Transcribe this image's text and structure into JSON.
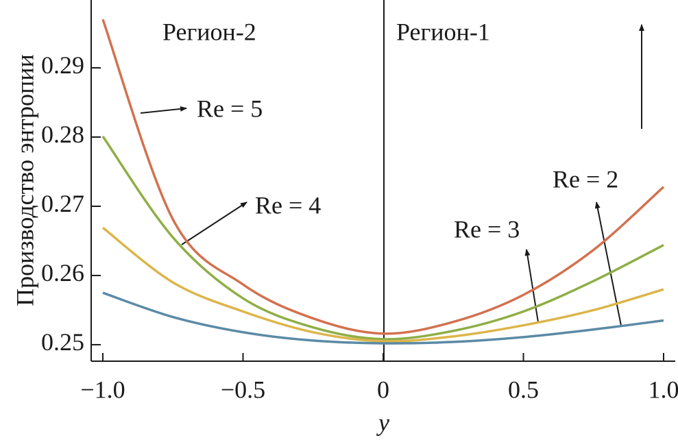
{
  "chart_data": {
    "type": "line",
    "x_label": "y",
    "y_label": "Производство энтропии",
    "x": [
      -1,
      -0.75,
      -0.5,
      -0.25,
      0,
      0.25,
      0.5,
      0.75,
      1
    ],
    "series": [
      {
        "name": "Re = 5",
        "color": "#d2714f",
        "values": [
          0.297,
          0.2681,
          0.2587,
          0.2538,
          0.2516,
          0.2533,
          0.2572,
          0.2637,
          0.2728
        ]
      },
      {
        "name": "Re = 4",
        "color": "#8fae45",
        "values": [
          0.2801,
          0.2655,
          0.2567,
          0.2525,
          0.2508,
          0.252,
          0.2548,
          0.2592,
          0.2644
        ]
      },
      {
        "name": "Re = 3",
        "color": "#dcb54a",
        "values": [
          0.2669,
          0.259,
          0.2548,
          0.2518,
          0.2505,
          0.2512,
          0.2528,
          0.255,
          0.258
        ]
      },
      {
        "name": "Re = 2",
        "color": "#5b8aa5",
        "values": [
          0.2575,
          0.254,
          0.2518,
          0.2506,
          0.2502,
          0.2504,
          0.2511,
          0.2522,
          0.2535
        ]
      }
    ],
    "annotations": [
      "Регион-2",
      "Регион-1"
    ],
    "xlim": [
      -1.0416,
      1.0416
    ],
    "ylim": [
      0.24762,
      0.2998
    ],
    "xticks": [
      {
        "value": -1,
        "label": "−1.0"
      },
      {
        "value": -0.5,
        "label": "−0.5"
      },
      0,
      {
        "value": 0.5,
        "label": "0.5"
      },
      {
        "value": 1,
        "label": "1.0"
      }
    ],
    "yticks": [
      0.25,
      0.26,
      0.27,
      0.28,
      0.29
    ],
    "grid": false
  }
}
